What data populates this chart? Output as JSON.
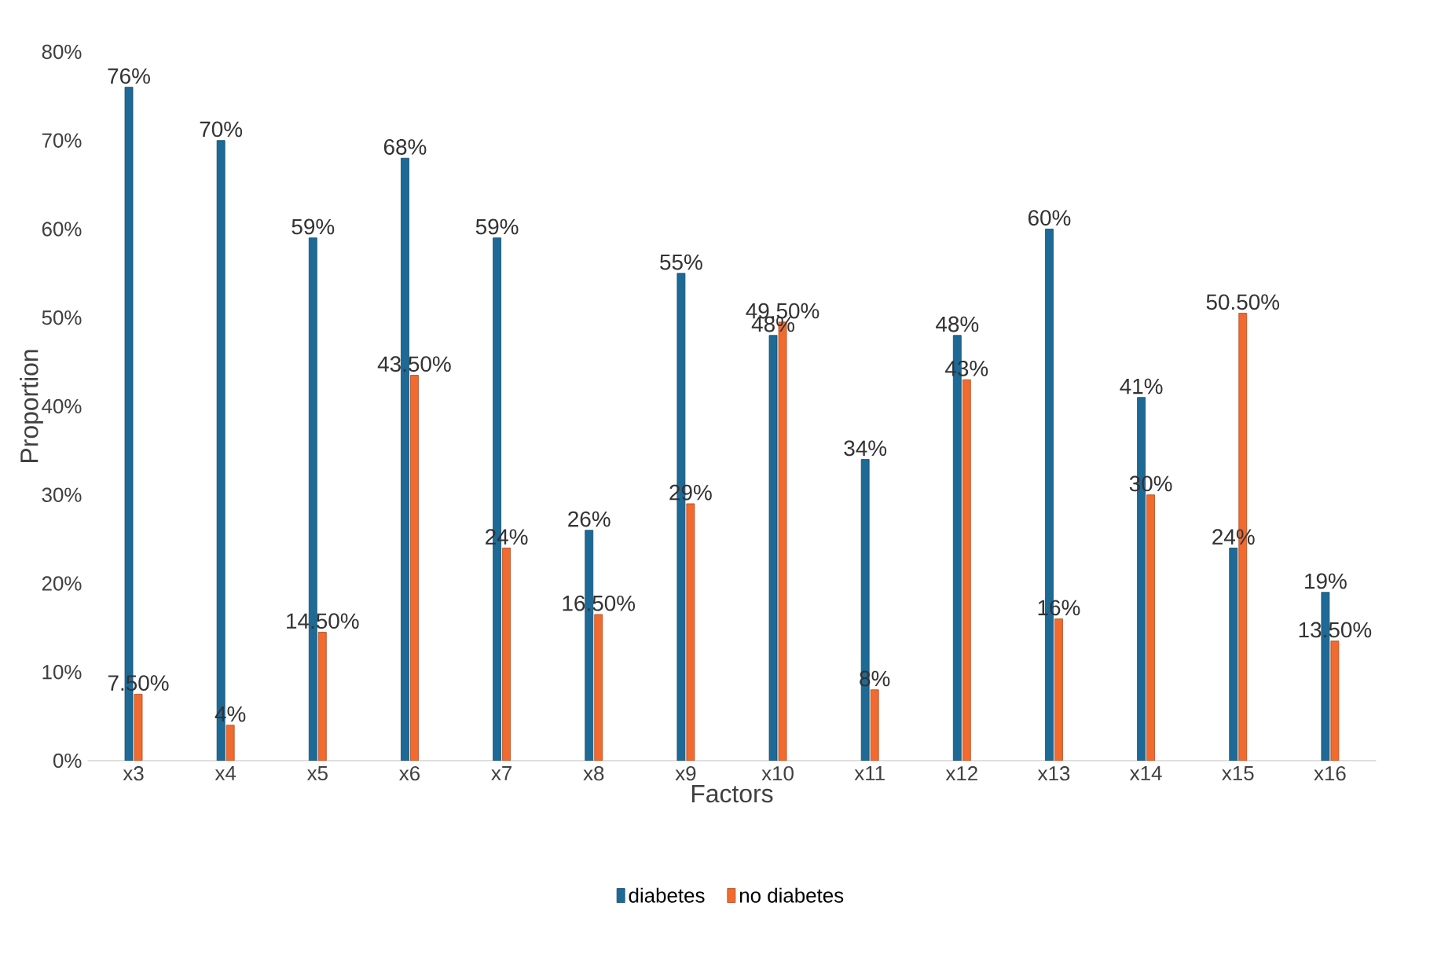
{
  "chart_data": {
    "type": "bar",
    "xlabel": "Factors",
    "ylabel": "Proportion",
    "categories": [
      "x3",
      "x4",
      "x5",
      "x6",
      "x7",
      "x8",
      "x9",
      "x10",
      "x11",
      "x12",
      "x13",
      "x14",
      "x15",
      "x16"
    ],
    "series": [
      {
        "name": "diabetes",
        "color": "#1e6a96",
        "values": [
          76,
          70,
          59,
          68,
          59,
          26,
          55,
          48,
          34,
          48,
          60,
          41,
          24,
          19
        ],
        "value_labels": [
          "76%",
          "70%",
          "59%",
          "68%",
          "59%",
          "26%",
          "55%",
          "48%",
          "34%",
          "48%",
          "60%",
          "41%",
          "24%",
          "19%"
        ]
      },
      {
        "name": "no diabetes",
        "color": "#f26a2e",
        "values": [
          7.5,
          4,
          14.5,
          43.5,
          24,
          16.5,
          29,
          49.5,
          8,
          43,
          16,
          30,
          50.5,
          13.5
        ],
        "value_labels": [
          "7.50%",
          "4%",
          "14.50%",
          "43.50%",
          "24%",
          "16.50%",
          "29%",
          "49.50%",
          "8%",
          "43%",
          "16%",
          "30%",
          "50.50%",
          "13.50%"
        ]
      }
    ],
    "ylim": [
      0,
      80
    ],
    "yticks": [
      {
        "value": 0,
        "label": "0%"
      },
      {
        "value": 10,
        "label": "10%"
      },
      {
        "value": 20,
        "label": "20%"
      },
      {
        "value": 30,
        "label": "30%"
      },
      {
        "value": 40,
        "label": "40%"
      },
      {
        "value": 50,
        "label": "50%"
      },
      {
        "value": 60,
        "label": "60%"
      },
      {
        "value": 70,
        "label": "70%"
      },
      {
        "value": 80,
        "label": "80%"
      }
    ],
    "legend": "bottom"
  }
}
